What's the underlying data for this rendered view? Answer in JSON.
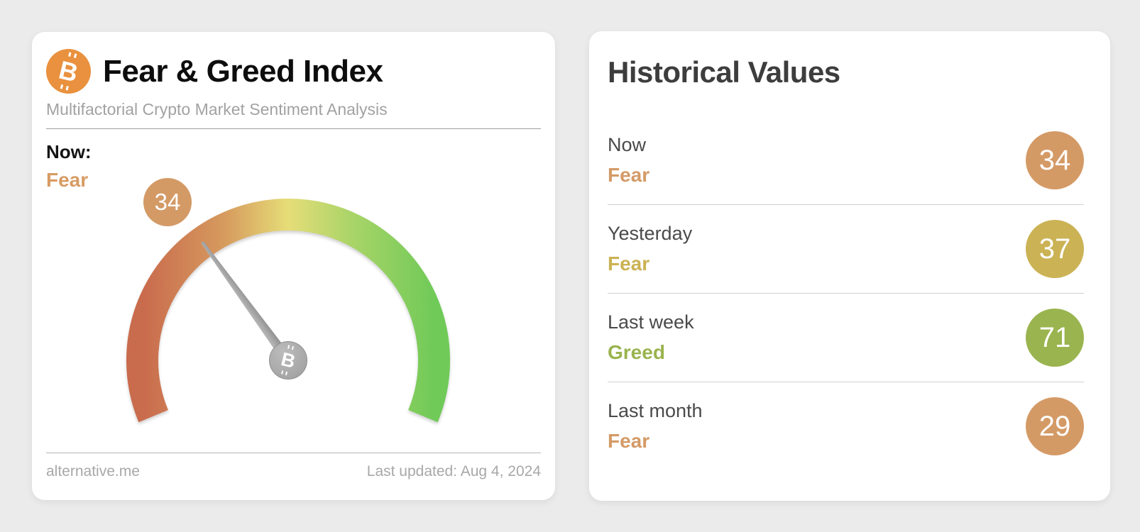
{
  "page": {
    "background": "#ebebeb"
  },
  "fear_greed_card": {
    "title": "Fear & Greed Index",
    "subtitle": "Multifactorial Crypto Market Sentiment Analysis",
    "now_label": "Now:",
    "now_sentiment": "Fear",
    "now_sentiment_color": "#d89b63",
    "footer_site": "alternative.me",
    "footer_updated": "Last updated: Aug 4, 2024",
    "bitcoin_symbol": "B"
  },
  "chart_data": {
    "type": "gauge",
    "title": "Fear & Greed Index",
    "value": 34,
    "min": 0,
    "max": 100,
    "sweep_deg": 225,
    "current_label": "Fear",
    "badge_color": "#d49a66",
    "arc_colors": [
      "#c96b4d",
      "#d69a5e",
      "#e6dd78",
      "#a9d468",
      "#70ca58"
    ],
    "needle_color": "#9b9b9b"
  },
  "historical_card": {
    "title": "Historical Values",
    "rows": [
      {
        "label": "Now",
        "sentiment": "Fear",
        "value": 34,
        "color": "#d49a66"
      },
      {
        "label": "Yesterday",
        "sentiment": "Fear",
        "value": 37,
        "color": "#cbb254"
      },
      {
        "label": "Last week",
        "sentiment": "Greed",
        "value": 71,
        "color": "#9ab44f"
      },
      {
        "label": "Last month",
        "sentiment": "Fear",
        "value": 29,
        "color": "#d49a66"
      }
    ]
  }
}
